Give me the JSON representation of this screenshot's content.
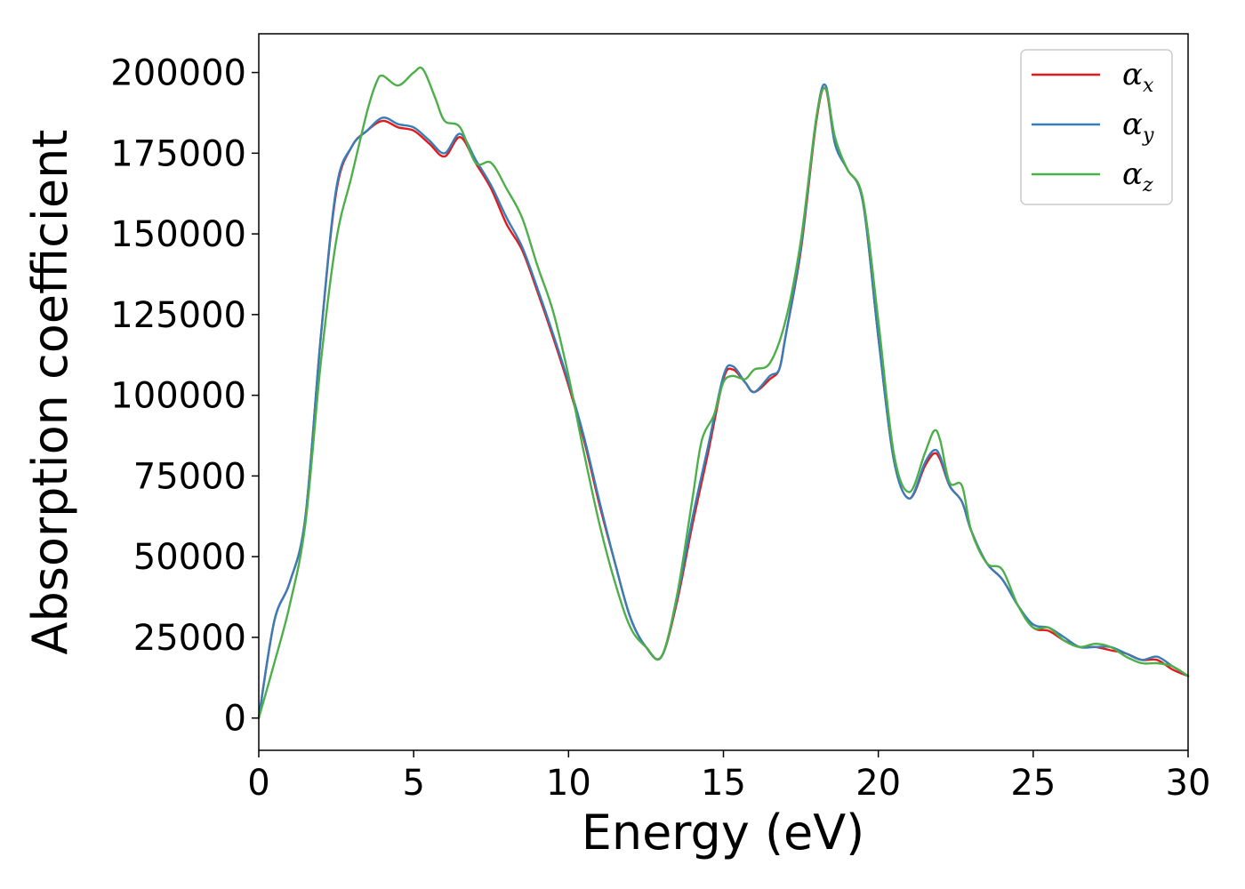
{
  "chart_data": {
    "type": "line",
    "title": "",
    "xlabel": "Energy (eV)",
    "ylabel": "Absorption coefficient",
    "xlim": [
      0,
      30
    ],
    "ylim": [
      -10000,
      212000
    ],
    "xticks": [
      0,
      5,
      10,
      15,
      20,
      25,
      30
    ],
    "xtick_labels": [
      "0",
      "5",
      "10",
      "15",
      "20",
      "25",
      "30"
    ],
    "yticks": [
      0,
      25000,
      50000,
      75000,
      100000,
      125000,
      150000,
      175000,
      200000
    ],
    "ytick_labels": [
      "0",
      "25000",
      "50000",
      "75000",
      "100000",
      "125000",
      "150000",
      "175000",
      "200000"
    ],
    "grid": false,
    "legend_position": "top-right",
    "series": [
      {
        "name": "αx",
        "legend_symbol": "α",
        "legend_subscript": "x",
        "color": "#e41a1c",
        "x": [
          0,
          0.5,
          1.0,
          1.5,
          2.0,
          2.5,
          3.0,
          3.5,
          4.0,
          4.5,
          5.0,
          5.5,
          6.0,
          6.5,
          7.0,
          7.5,
          8.0,
          8.5,
          9.0,
          9.5,
          10.0,
          10.5,
          11.0,
          11.5,
          12.0,
          12.5,
          13.0,
          13.5,
          14.0,
          14.5,
          15.0,
          15.3,
          15.7,
          16.0,
          16.5,
          16.8,
          17.0,
          17.5,
          18.0,
          18.3,
          18.6,
          19.0,
          19.5,
          20.0,
          20.5,
          21.0,
          21.5,
          21.8,
          22.0,
          22.3,
          22.7,
          23.0,
          23.5,
          24.0,
          24.5,
          25.0,
          25.5,
          26.0,
          26.5,
          27.0,
          27.5,
          28.0,
          28.5,
          29.0,
          29.5,
          30.0
        ],
        "y": [
          0,
          30000,
          42000,
          62000,
          118000,
          163000,
          177000,
          182000,
          185000,
          183000,
          182000,
          178000,
          174000,
          180000,
          172000,
          164000,
          153000,
          145000,
          132000,
          118000,
          103000,
          86000,
          66000,
          48000,
          31000,
          22000,
          19000,
          36000,
          60000,
          82000,
          105000,
          108000,
          104000,
          101000,
          105000,
          108000,
          118000,
          145000,
          185000,
          195000,
          178000,
          170000,
          160000,
          118000,
          80000,
          68000,
          78000,
          82000,
          80000,
          72000,
          67000,
          58000,
          48000,
          43000,
          35000,
          28000,
          27000,
          24000,
          22000,
          22000,
          21000,
          20000,
          18000,
          18000,
          15000,
          13000
        ]
      },
      {
        "name": "αy",
        "legend_symbol": "α",
        "legend_subscript": "y",
        "color": "#377eb8",
        "x": [
          0,
          0.5,
          1.0,
          1.5,
          2.0,
          2.5,
          3.0,
          3.5,
          4.0,
          4.5,
          5.0,
          5.5,
          6.0,
          6.5,
          7.0,
          7.5,
          8.0,
          8.5,
          9.0,
          9.5,
          10.0,
          10.5,
          11.0,
          11.5,
          12.0,
          12.5,
          13.0,
          13.5,
          14.0,
          14.5,
          15.0,
          15.3,
          15.7,
          16.0,
          16.5,
          16.8,
          17.0,
          17.5,
          18.0,
          18.3,
          18.6,
          19.0,
          19.5,
          20.0,
          20.5,
          21.0,
          21.5,
          21.8,
          22.0,
          22.3,
          22.7,
          23.0,
          23.5,
          24.0,
          24.5,
          25.0,
          25.5,
          26.0,
          26.5,
          27.0,
          27.5,
          28.0,
          28.5,
          29.0,
          29.5,
          30.0
        ],
        "y": [
          0,
          30000,
          42000,
          62000,
          118000,
          164000,
          177000,
          182000,
          186000,
          184000,
          183000,
          179000,
          175000,
          181000,
          173000,
          165000,
          155000,
          146000,
          133000,
          119000,
          104000,
          87000,
          67000,
          48000,
          31000,
          22000,
          19000,
          37000,
          62000,
          84000,
          106000,
          109000,
          104000,
          101000,
          106000,
          108000,
          118000,
          146000,
          186000,
          196000,
          178000,
          170000,
          160000,
          118000,
          80000,
          68000,
          79000,
          83000,
          81000,
          72000,
          67000,
          58000,
          48000,
          43000,
          35000,
          29000,
          28000,
          25000,
          22000,
          22000,
          22000,
          20000,
          18000,
          19000,
          16000,
          13000
        ]
      },
      {
        "name": "αz",
        "legend_symbol": "α",
        "legend_subscript": "z",
        "color": "#4daf4a",
        "x": [
          0,
          0.5,
          1.0,
          1.5,
          2.0,
          2.5,
          3.0,
          3.5,
          3.8,
          4.0,
          4.5,
          5.0,
          5.3,
          5.7,
          6.0,
          6.5,
          7.0,
          7.5,
          8.0,
          8.5,
          9.0,
          9.5,
          10.0,
          10.5,
          11.0,
          11.5,
          12.0,
          12.5,
          13.0,
          13.5,
          14.0,
          14.3,
          14.7,
          15.0,
          15.3,
          15.7,
          16.0,
          16.5,
          17.0,
          17.5,
          18.0,
          18.3,
          18.6,
          19.0,
          19.5,
          20.0,
          20.5,
          21.0,
          21.5,
          21.8,
          22.0,
          22.3,
          22.7,
          23.0,
          23.5,
          24.0,
          24.5,
          25.0,
          25.5,
          26.0,
          26.5,
          27.0,
          27.5,
          28.0,
          28.5,
          29.0,
          29.5,
          30.0
        ],
        "y": [
          0,
          17000,
          35000,
          60000,
          110000,
          148000,
          168000,
          188000,
          197000,
          199000,
          196000,
          200000,
          201000,
          192000,
          185000,
          183000,
          172000,
          172000,
          164000,
          155000,
          140000,
          126000,
          106000,
          82000,
          60000,
          42000,
          28000,
          22000,
          19000,
          38000,
          68000,
          86000,
          94000,
          104000,
          106000,
          105000,
          108000,
          110000,
          123000,
          148000,
          186000,
          195000,
          180000,
          170000,
          161000,
          123000,
          82000,
          70000,
          82000,
          89000,
          86000,
          73000,
          72000,
          58000,
          48000,
          46000,
          35000,
          28000,
          28000,
          24000,
          22000,
          23000,
          22000,
          19000,
          17000,
          17000,
          16000,
          13000
        ]
      }
    ]
  }
}
